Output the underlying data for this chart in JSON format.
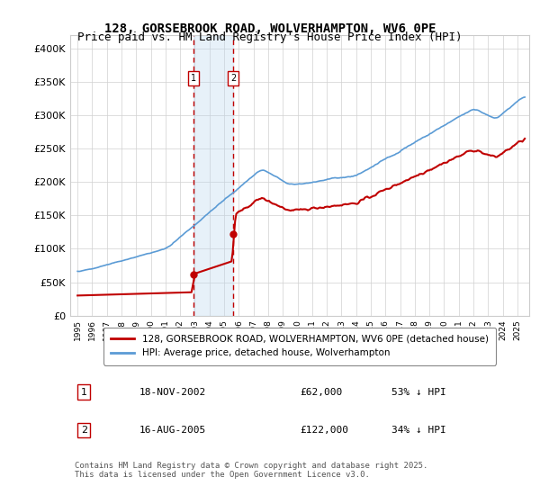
{
  "title_line1": "128, GORSEBROOK ROAD, WOLVERHAMPTON, WV6 0PE",
  "title_line2": "Price paid vs. HM Land Registry's House Price Index (HPI)",
  "xlabel": "",
  "ylabel": "",
  "ylim": [
    0,
    420000
  ],
  "yticks": [
    0,
    50000,
    100000,
    150000,
    200000,
    250000,
    300000,
    350000,
    400000
  ],
  "ytick_labels": [
    "£0",
    "£50K",
    "£100K",
    "£150K",
    "£200K",
    "£250K",
    "£300K",
    "£350K",
    "£400K"
  ],
  "x_start_year": 1995,
  "x_end_year": 2025,
  "marker1_date": "18-NOV-2002",
  "marker1_price": 62000,
  "marker1_hpi_diff": "53% ↓ HPI",
  "marker1_x": 2002.88,
  "marker2_date": "16-AUG-2005",
  "marker2_price": 122000,
  "marker2_hpi_diff": "34% ↓ HPI",
  "marker2_x": 2005.62,
  "hpi_line_color": "#5b9bd5",
  "price_line_color": "#c00000",
  "vline_color": "#c00000",
  "shade_color": "#bdd7ee",
  "legend_label1": "128, GORSEBROOK ROAD, WOLVERHAMPTON, WV6 0PE (detached house)",
  "legend_label2": "HPI: Average price, detached house, Wolverhampton",
  "footnote": "Contains HM Land Registry data © Crown copyright and database right 2025.\nThis data is licensed under the Open Government Licence v3.0.",
  "background_color": "#ffffff",
  "grid_color": "#d0d0d0",
  "title_fontsize": 10,
  "subtitle_fontsize": 9,
  "axis_fontsize": 8
}
